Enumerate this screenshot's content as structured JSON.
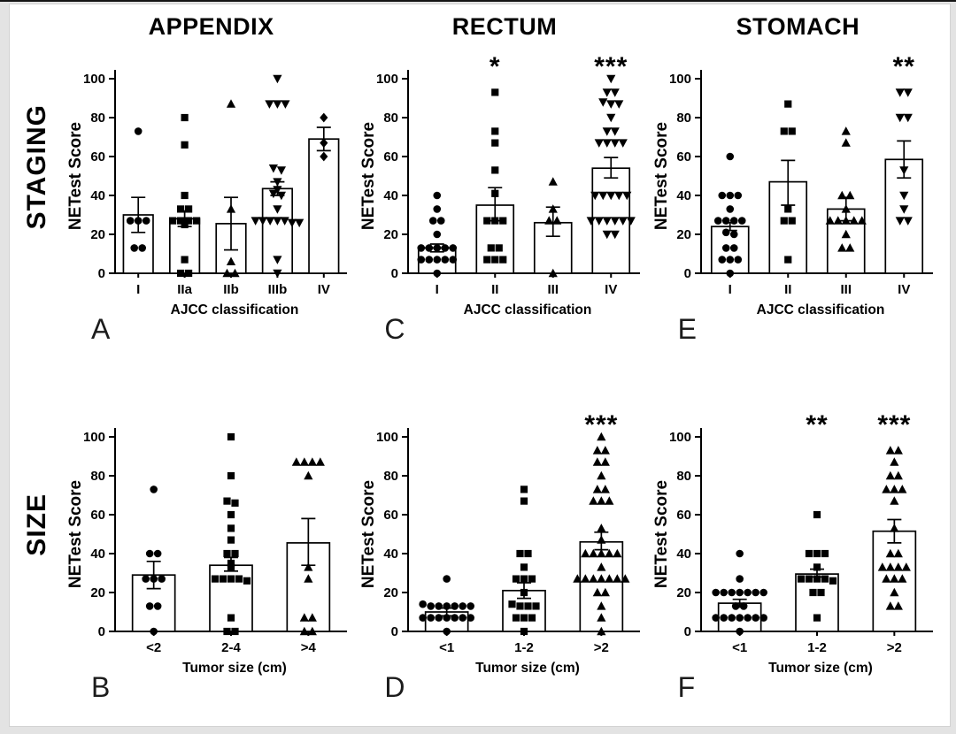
{
  "figure": {
    "row_labels": [
      "STAGING",
      "SIZE"
    ],
    "column_titles": [
      "APPENDIX",
      "RECTUM",
      "STOMACH"
    ],
    "colors": {
      "significance": "#d22b2b",
      "ink": "#000000",
      "bar_fill": "#ffffff"
    }
  },
  "chart_data": [
    {
      "panel_letter": "A",
      "organ": "APPENDIX",
      "row": "STAGING",
      "title": "APPENDIX",
      "type": "bar+scatter",
      "ylabel": "NETest Score",
      "xlabel": "AJCC classification",
      "ylim": [
        0,
        100
      ],
      "yticks": [
        0,
        20,
        40,
        60,
        80,
        100
      ],
      "categories": [
        "I",
        "IIa",
        "IIb",
        "IIIb",
        "IV"
      ],
      "markers": [
        "circle",
        "square",
        "triangle-up",
        "triangle-down",
        "diamond"
      ],
      "bar_means": [
        30,
        28,
        25.5,
        43.5,
        69
      ],
      "error_low": [
        21,
        24,
        12,
        40,
        63
      ],
      "error_high": [
        39,
        32,
        39,
        47,
        75
      ],
      "significance": [
        "",
        "",
        "",
        "",
        ""
      ],
      "points": [
        [
          73,
          27,
          27,
          27,
          13,
          13
        ],
        [
          80,
          66,
          40,
          33,
          33,
          27,
          27,
          27,
          27,
          25,
          7,
          0,
          0
        ],
        [
          87,
          33,
          6,
          0,
          0
        ],
        [
          100,
          87,
          87,
          87,
          54,
          53,
          47,
          43,
          41,
          40,
          33,
          27,
          27,
          27,
          27,
          27,
          26,
          26,
          7,
          0
        ],
        [
          80,
          67,
          60
        ]
      ]
    },
    {
      "panel_letter": "C",
      "organ": "RECTUM",
      "row": "STAGING",
      "title": "RECTUM",
      "type": "bar+scatter",
      "ylabel": "NETest Score",
      "xlabel": "AJCC classification",
      "ylim": [
        0,
        100
      ],
      "yticks": [
        0,
        20,
        40,
        60,
        80,
        100
      ],
      "categories": [
        "I",
        "II",
        "III",
        "IV"
      ],
      "markers": [
        "circle",
        "square",
        "triangle-up",
        "triangle-down"
      ],
      "bar_means": [
        13,
        35,
        26,
        54
      ],
      "error_low": [
        11,
        27,
        19,
        49
      ],
      "error_high": [
        15,
        44,
        34,
        59.5
      ],
      "significance": [
        "",
        "*",
        "",
        "***"
      ],
      "points": [
        [
          40,
          33,
          27,
          27,
          20,
          13,
          13,
          13,
          13,
          13,
          7,
          7,
          7,
          7,
          7,
          0
        ],
        [
          93,
          73,
          67,
          53,
          41,
          27,
          27,
          27,
          13,
          13,
          7,
          7,
          7
        ],
        [
          47,
          33,
          27,
          27,
          0
        ],
        [
          100,
          93,
          93,
          88,
          87,
          87,
          80,
          73,
          73,
          67,
          67,
          67,
          67,
          40,
          40,
          40,
          40,
          40,
          27,
          27,
          27,
          27,
          27,
          27,
          20,
          20
        ]
      ]
    },
    {
      "panel_letter": "E",
      "organ": "STOMACH",
      "row": "STAGING",
      "title": "STOMACH",
      "type": "bar+scatter",
      "ylabel": "NETest Score",
      "xlabel": "AJCC classification",
      "ylim": [
        0,
        100
      ],
      "yticks": [
        0,
        20,
        40,
        60,
        80,
        100
      ],
      "categories": [
        "I",
        "II",
        "III",
        "IV"
      ],
      "markers": [
        "circle",
        "square",
        "triangle-up",
        "triangle-down"
      ],
      "bar_means": [
        24,
        47,
        33,
        58.5
      ],
      "error_low": [
        22,
        35,
        27,
        49
      ],
      "error_high": [
        26,
        58,
        39,
        68
      ],
      "significance": [
        "",
        "",
        "",
        "**"
      ],
      "points": [
        [
          60,
          40,
          40,
          40,
          33,
          27,
          27,
          27,
          27,
          21,
          20,
          13,
          13,
          7,
          7,
          7,
          0
        ],
        [
          87,
          73,
          73,
          33,
          27,
          27,
          7
        ],
        [
          73,
          67,
          40,
          40,
          33,
          27,
          27,
          27,
          27,
          27,
          20,
          13,
          13
        ],
        [
          93,
          93,
          80,
          80,
          53,
          40,
          33,
          27,
          27
        ]
      ]
    },
    {
      "panel_letter": "B",
      "organ": "APPENDIX",
      "row": "SIZE",
      "title": "",
      "type": "bar+scatter",
      "ylabel": "NETest Score",
      "xlabel": "Tumor size (cm)",
      "ylim": [
        0,
        100
      ],
      "yticks": [
        0,
        20,
        40,
        60,
        80,
        100
      ],
      "categories": [
        "<2",
        "2-4",
        ">4"
      ],
      "markers": [
        "circle",
        "square",
        "triangle-up"
      ],
      "bar_means": [
        29,
        34,
        45.5
      ],
      "error_low": [
        22,
        31,
        34
      ],
      "error_high": [
        36,
        38,
        58
      ],
      "significance": [
        "",
        "",
        ""
      ],
      "points": [
        [
          73,
          40,
          40,
          27,
          27,
          27,
          13,
          13,
          0
        ],
        [
          100,
          80,
          67,
          66,
          60,
          53,
          47,
          40,
          40,
          35,
          33,
          27,
          27,
          27,
          27,
          26,
          7,
          0,
          0
        ],
        [
          87,
          87,
          87,
          87,
          80,
          33,
          27,
          7,
          7,
          0,
          0
        ]
      ]
    },
    {
      "panel_letter": "D",
      "organ": "RECTUM",
      "row": "SIZE",
      "title": "",
      "type": "bar+scatter",
      "ylabel": "NETest Score",
      "xlabel": "Tumor size (cm)",
      "ylim": [
        0,
        100
      ],
      "yticks": [
        0,
        20,
        40,
        60,
        80,
        100
      ],
      "categories": [
        "<1",
        "1-2",
        ">2"
      ],
      "markers": [
        "circle",
        "square",
        "triangle-up"
      ],
      "bar_means": [
        10,
        21,
        46
      ],
      "error_low": [
        8,
        17,
        42
      ],
      "error_high": [
        12,
        25,
        51
      ],
      "significance": [
        "",
        "",
        "***"
      ],
      "points": [
        [
          27,
          14,
          13,
          13,
          13,
          13,
          13,
          13,
          7,
          7,
          7,
          7,
          7,
          7,
          7,
          0
        ],
        [
          73,
          67,
          40,
          40,
          33,
          27,
          27,
          27,
          20,
          14,
          13,
          13,
          13,
          7,
          7,
          7,
          0
        ],
        [
          100,
          93,
          93,
          87,
          87,
          80,
          73,
          73,
          67,
          67,
          67,
          53,
          47,
          40,
          40,
          40,
          40,
          40,
          33,
          27,
          27,
          27,
          27,
          27,
          27,
          27,
          20,
          20,
          13,
          7,
          0
        ]
      ]
    },
    {
      "panel_letter": "F",
      "organ": "STOMACH",
      "row": "SIZE",
      "title": "",
      "type": "bar+scatter",
      "ylabel": "NETest Score",
      "xlabel": "Tumor size (cm)",
      "ylim": [
        0,
        100
      ],
      "yticks": [
        0,
        20,
        40,
        60,
        80,
        100
      ],
      "categories": [
        "<1",
        "1-2",
        ">2"
      ],
      "markers": [
        "circle",
        "square",
        "triangle-up"
      ],
      "bar_means": [
        14.5,
        29.5,
        51.5
      ],
      "error_low": [
        12.5,
        28,
        45.5
      ],
      "error_high": [
        16.5,
        32,
        57.5
      ],
      "significance": [
        "",
        "**",
        "***"
      ],
      "points": [
        [
          40,
          27,
          20,
          20,
          20,
          20,
          20,
          20,
          20,
          13,
          13,
          7,
          7,
          7,
          7,
          7,
          7,
          7,
          0
        ],
        [
          60,
          40,
          40,
          40,
          33,
          27,
          27,
          27,
          27,
          26,
          20,
          20,
          7
        ],
        [
          93,
          93,
          87,
          80,
          80,
          73,
          73,
          73,
          67,
          53,
          40,
          40,
          33,
          33,
          33,
          33,
          27,
          27,
          27,
          20,
          13,
          13
        ]
      ]
    }
  ]
}
